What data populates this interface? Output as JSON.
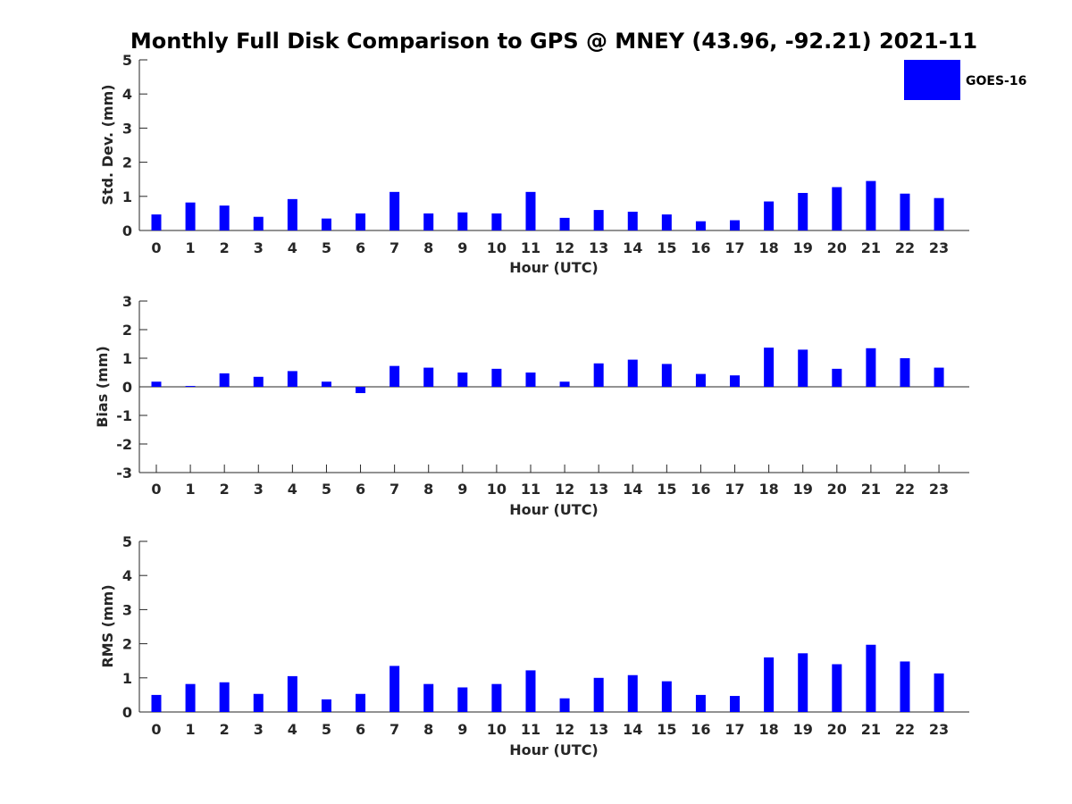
{
  "figure": {
    "title": "Monthly Full Disk Comparison to GPS @ MNEY (43.96, -92.21) 2021-11"
  },
  "legend": {
    "label": "GOES-16",
    "color": "#0000ff",
    "placement": "top-right"
  },
  "chart_data": [
    {
      "type": "bar",
      "xlabel": "Hour (UTC)",
      "ylabel": "Std. Dev. (mm)",
      "ylim": [
        0,
        5
      ],
      "yticks": [
        "0",
        "1",
        "2",
        "3",
        "4",
        "5"
      ],
      "categories": [
        "0",
        "1",
        "2",
        "3",
        "4",
        "5",
        "6",
        "7",
        "8",
        "9",
        "10",
        "11",
        "12",
        "13",
        "14",
        "15",
        "16",
        "17",
        "18",
        "19",
        "20",
        "21",
        "22",
        "23"
      ],
      "series": [
        {
          "name": "GOES-16",
          "color": "#0000ff",
          "values": [
            0.47,
            0.82,
            0.73,
            0.4,
            0.92,
            0.35,
            0.5,
            1.13,
            0.5,
            0.53,
            0.5,
            1.13,
            0.37,
            0.6,
            0.55,
            0.47,
            0.27,
            0.3,
            0.85,
            1.1,
            1.27,
            1.45,
            1.08,
            0.95
          ]
        }
      ]
    },
    {
      "type": "bar",
      "xlabel": "Hour (UTC)",
      "ylabel": "Bias (mm)",
      "ylim": [
        -3,
        3
      ],
      "yticks": [
        "-3",
        "-2",
        "-1",
        "0",
        "1",
        "2",
        "3"
      ],
      "categories": [
        "0",
        "1",
        "2",
        "3",
        "4",
        "5",
        "6",
        "7",
        "8",
        "9",
        "10",
        "11",
        "12",
        "13",
        "14",
        "15",
        "16",
        "17",
        "18",
        "19",
        "20",
        "21",
        "22",
        "23"
      ],
      "series": [
        {
          "name": "GOES-16",
          "color": "#0000ff",
          "values": [
            0.18,
            0.03,
            0.47,
            0.35,
            0.55,
            0.18,
            -0.22,
            0.73,
            0.67,
            0.5,
            0.63,
            0.5,
            0.18,
            0.82,
            0.95,
            0.8,
            0.45,
            0.4,
            1.37,
            1.3,
            0.63,
            1.35,
            1.0,
            0.67
          ]
        }
      ]
    },
    {
      "type": "bar",
      "xlabel": "Hour (UTC)",
      "ylabel": "RMS (mm)",
      "ylim": [
        0,
        5
      ],
      "yticks": [
        "0",
        "1",
        "2",
        "3",
        "4",
        "5"
      ],
      "categories": [
        "0",
        "1",
        "2",
        "3",
        "4",
        "5",
        "6",
        "7",
        "8",
        "9",
        "10",
        "11",
        "12",
        "13",
        "14",
        "15",
        "16",
        "17",
        "18",
        "19",
        "20",
        "21",
        "22",
        "23"
      ],
      "series": [
        {
          "name": "GOES-16",
          "color": "#0000ff",
          "values": [
            0.5,
            0.82,
            0.87,
            0.53,
            1.05,
            0.37,
            0.53,
            1.35,
            0.82,
            0.72,
            0.82,
            1.22,
            0.4,
            1.0,
            1.08,
            0.9,
            0.5,
            0.47,
            1.6,
            1.72,
            1.4,
            1.97,
            1.48,
            1.13
          ]
        }
      ]
    }
  ]
}
